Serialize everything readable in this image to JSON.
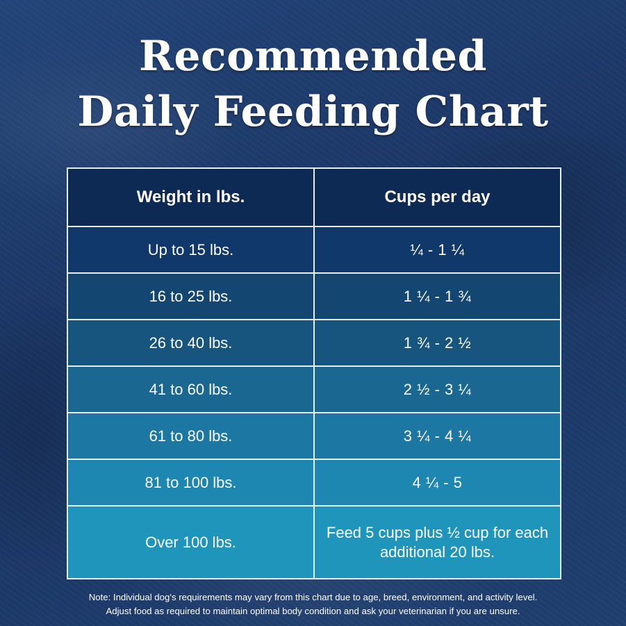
{
  "title": {
    "line1": "Recommended",
    "line2": "Daily Feeding Chart"
  },
  "table": {
    "headers": {
      "weight": "Weight in lbs.",
      "cups": "Cups per day"
    },
    "rows": [
      {
        "weight": "Up to 15 lbs.",
        "cups": "¼  - 1 ¼"
      },
      {
        "weight": "16 to 25 lbs.",
        "cups": "1 ¼ - 1 ¾"
      },
      {
        "weight": "26 to 40 lbs.",
        "cups": "1 ¾  - 2 ½"
      },
      {
        "weight": "41 to 60 lbs.",
        "cups": "2 ½ - 3 ¼"
      },
      {
        "weight": "61 to 80 lbs.",
        "cups": "3 ¼ - 4 ¼"
      },
      {
        "weight": "81 to 100 lbs.",
        "cups": "4 ¼  - 5"
      },
      {
        "weight": "Over 100 lbs.",
        "cups": "Feed 5 cups plus ½ cup for each additional 20 lbs."
      }
    ]
  },
  "note": {
    "line1": "Note: Individual dog’s requirements may vary from this chart due to age, breed, environment, and activity level.",
    "line2": "Adjust food as required to maintain optimal body condition and ask your veterinarian if you are unsure."
  },
  "colors": {
    "background": "#1d3a6b",
    "header_row": "#0d2a55",
    "row_gradient": [
      "#10386a",
      "#144672",
      "#17557f",
      "#1a6791",
      "#1c78a2",
      "#1e87b1",
      "#2095bc"
    ],
    "border": "#e6eef6",
    "text": "#ffffff"
  }
}
